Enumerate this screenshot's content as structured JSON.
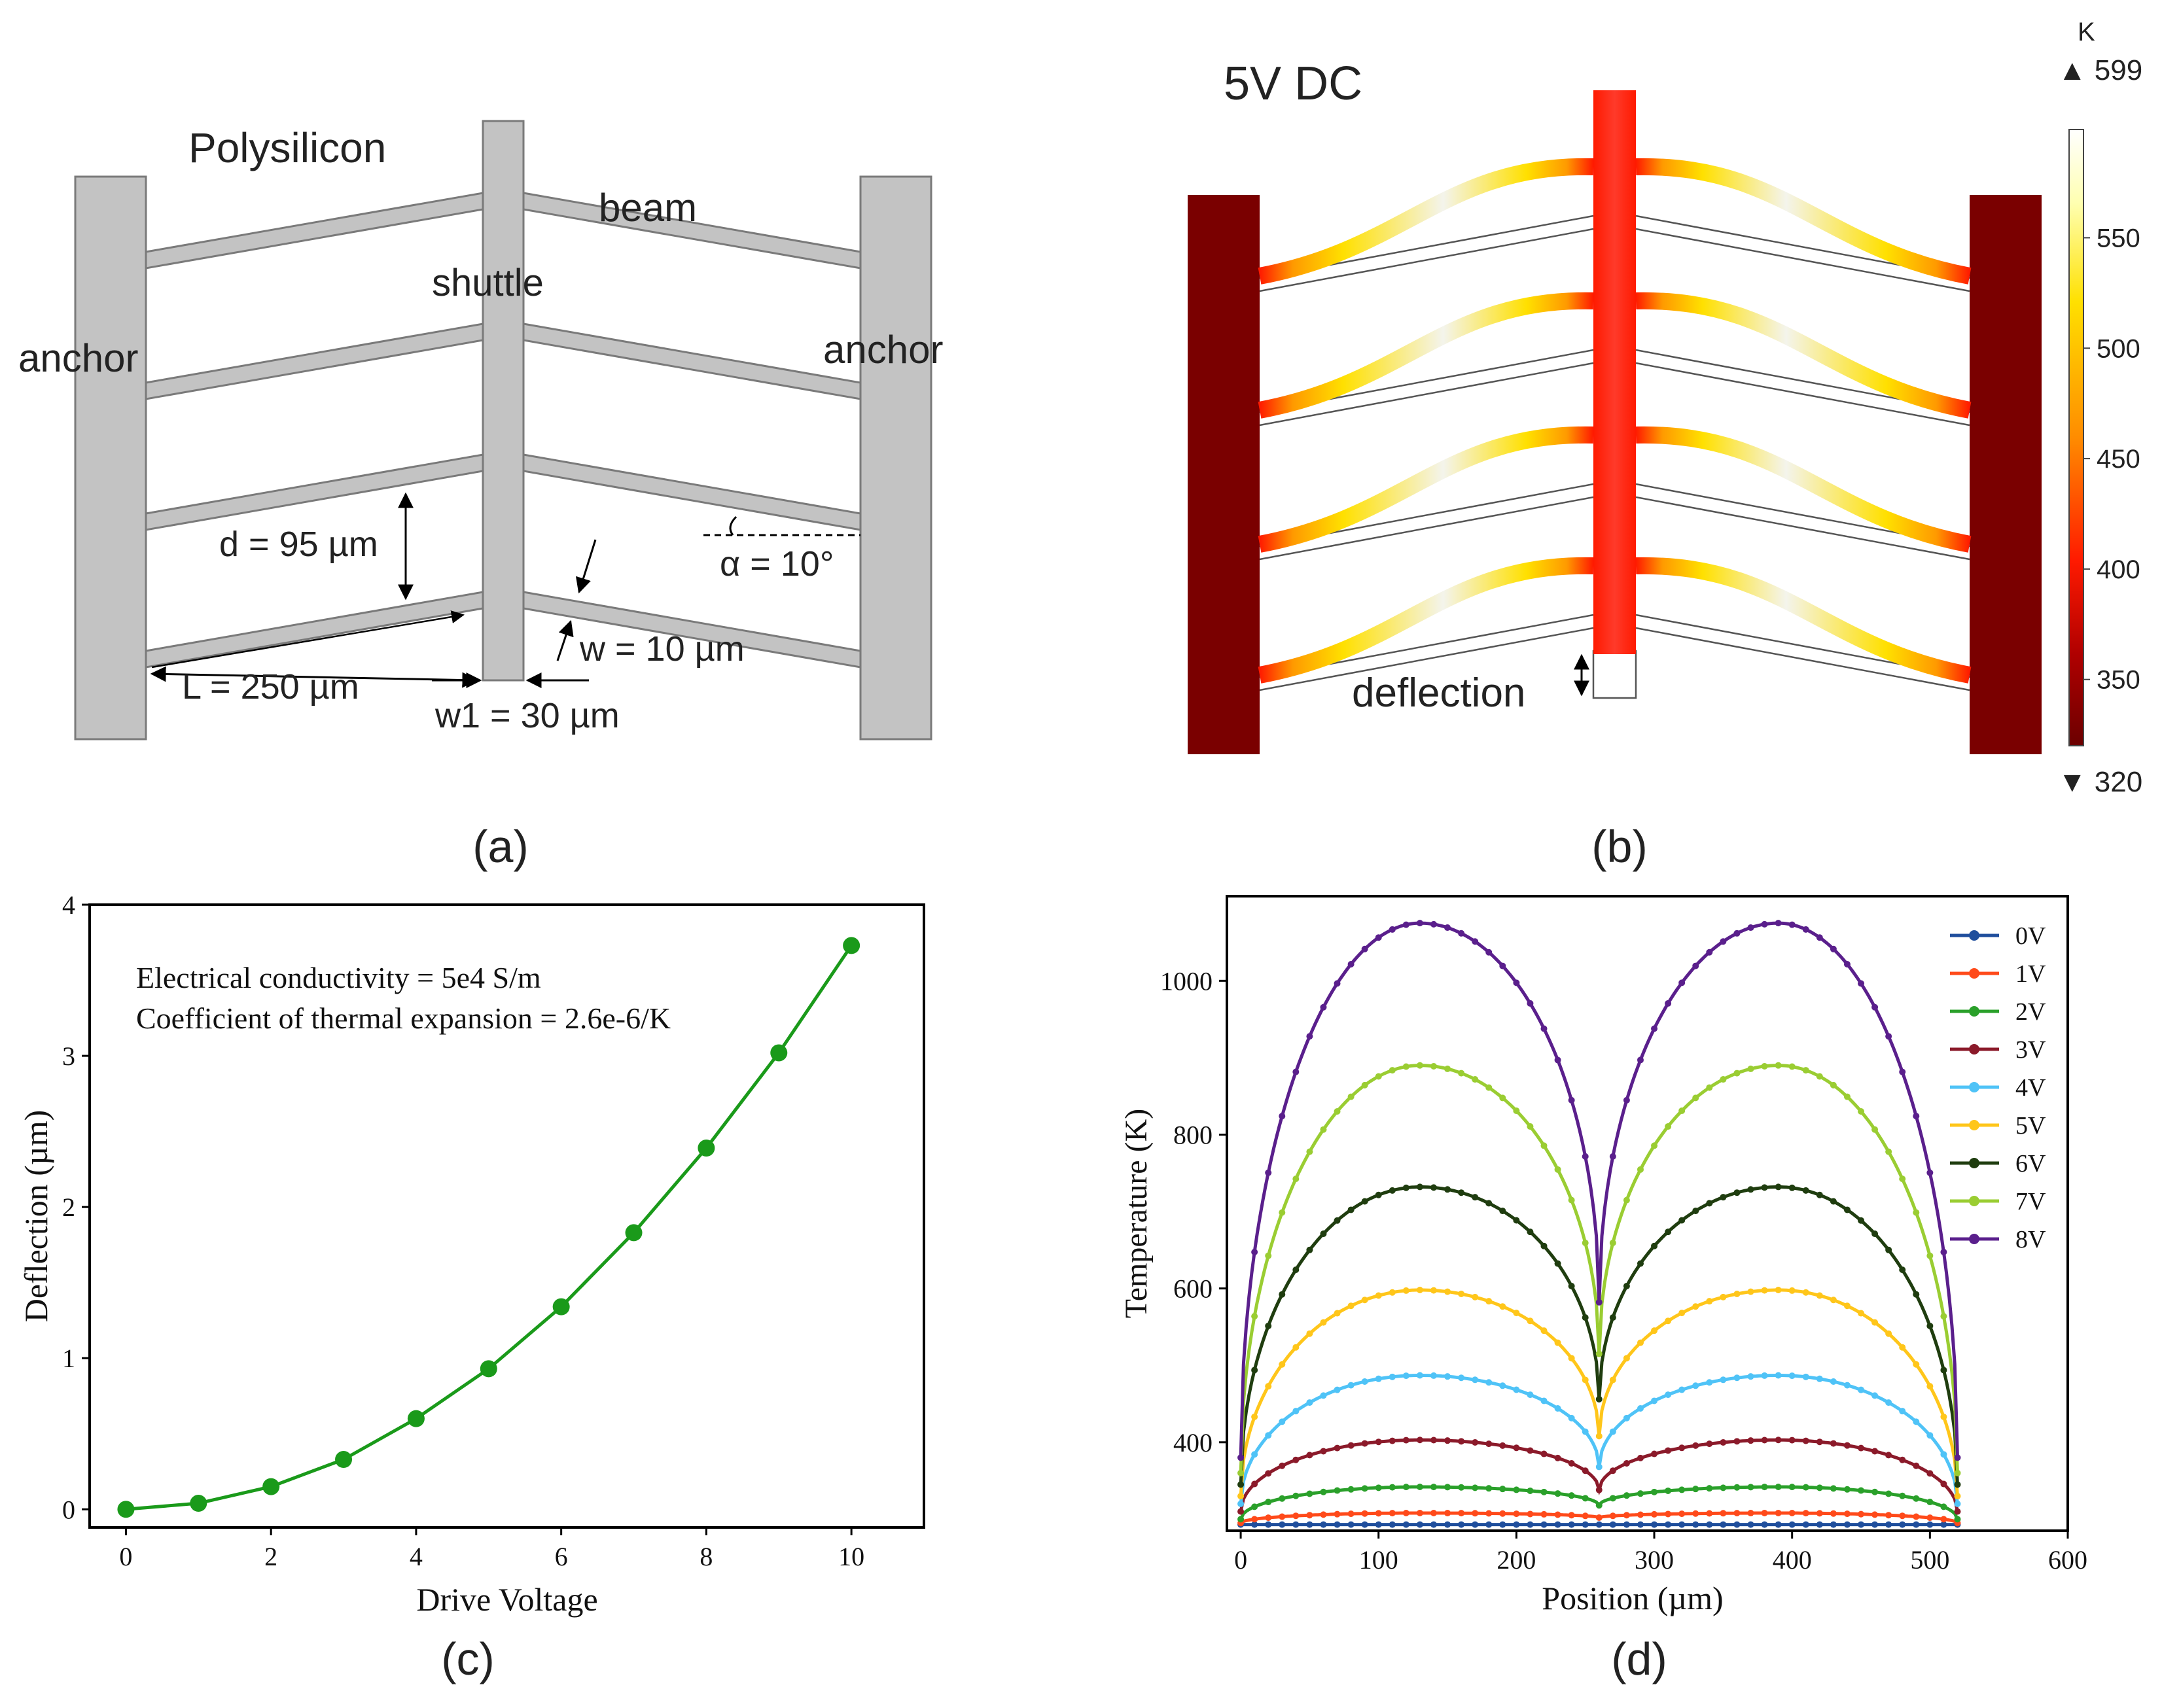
{
  "panel_a": {
    "label": "(a)",
    "material": "Polysilicon",
    "anchor_left": "anchor",
    "anchor_right": "anchor",
    "shuttle": "shuttle",
    "beam": "beam",
    "d": "d = 95 µm",
    "alpha": "α = 10°",
    "w": "w = 10 µm",
    "L": "L = 250 µm",
    "w1": "w1 = 30 µm"
  },
  "panel_b": {
    "label": "(b)",
    "title": "5V DC",
    "deflection": "deflection",
    "colorbar": {
      "unit": "K",
      "max": "▲ 599",
      "min": "▼ 320",
      "ticks": [
        "550",
        "500",
        "450",
        "400",
        "350"
      ],
      "tick_values": [
        550,
        500,
        450,
        400,
        350
      ],
      "range": [
        320,
        599
      ],
      "colors": [
        "#6b0000",
        "#b00000",
        "#ff1a00",
        "#ff8c00",
        "#ffe000",
        "#ffffb0",
        "#ffffff"
      ]
    }
  },
  "panel_c": {
    "label": "(c)",
    "annotation1": "Electrical conductivity = 5e4 S/m",
    "annotation2": "Coefficient of thermal expansion = 2.6e-6/K",
    "chart_data": {
      "type": "line",
      "x": [
        0,
        1,
        2,
        3,
        4,
        5,
        6,
        7,
        8,
        9,
        10
      ],
      "values": [
        0.0,
        0.04,
        0.15,
        0.33,
        0.6,
        0.93,
        1.34,
        1.83,
        2.39,
        3.02,
        3.73
      ],
      "xlabel": "Drive Voltage",
      "ylabel": "Deflection (µm)",
      "xlim": [
        -0.5,
        11
      ],
      "ylim": [
        -0.12,
        4
      ],
      "xticks": [
        0,
        2,
        4,
        6,
        8,
        10
      ],
      "xtick_labels": [
        "0",
        "2",
        "4",
        "6",
        "8",
        "10"
      ],
      "yticks": [
        0,
        1,
        2,
        3,
        4
      ],
      "ytick_labels": [
        "0",
        "1",
        "2",
        "3",
        "4"
      ],
      "color": "#1a9a1a"
    }
  },
  "panel_d": {
    "label": "(d)",
    "chart_data": {
      "type": "line",
      "xlabel": "Position (µm)",
      "ylabel": "Temperature (K)",
      "xlim": [
        -10,
        600
      ],
      "ylim": [
        285,
        1110
      ],
      "xticks": [
        0,
        100,
        200,
        300,
        400,
        500,
        600
      ],
      "xtick_labels": [
        "0",
        "100",
        "200",
        "300",
        "400",
        "500",
        "600"
      ],
      "yticks": [
        400,
        600,
        800,
        1000
      ],
      "ytick_labels": [
        "400",
        "600",
        "800",
        "1000"
      ],
      "legend_position": "top-right",
      "x_range": [
        0,
        520
      ],
      "peak_positions": [
        130,
        390
      ],
      "dip_position": 260,
      "series": [
        {
          "name": "0V",
          "base": 293,
          "peak": 293,
          "dip": 293,
          "color": "#1f4e9c"
        },
        {
          "name": "1V",
          "base": 295,
          "peak": 308,
          "dip": 302,
          "color": "#ff4a1a"
        },
        {
          "name": "2V",
          "base": 300,
          "peak": 342,
          "dip": 318,
          "color": "#2aa02a"
        },
        {
          "name": "3V",
          "base": 310,
          "peak": 403,
          "dip": 338,
          "color": "#8b1a2a"
        },
        {
          "name": "4V",
          "base": 320,
          "peak": 487,
          "dip": 368,
          "color": "#4fc3f7"
        },
        {
          "name": "5V",
          "base": 330,
          "peak": 598,
          "dip": 408,
          "color": "#ffc61a"
        },
        {
          "name": "6V",
          "base": 345,
          "peak": 732,
          "dip": 456,
          "color": "#1f3d0f"
        },
        {
          "name": "7V",
          "base": 360,
          "peak": 890,
          "dip": 515,
          "color": "#9acd32"
        },
        {
          "name": "8V",
          "base": 380,
          "peak": 1075,
          "dip": 582,
          "color": "#5a1f8c"
        }
      ]
    }
  }
}
